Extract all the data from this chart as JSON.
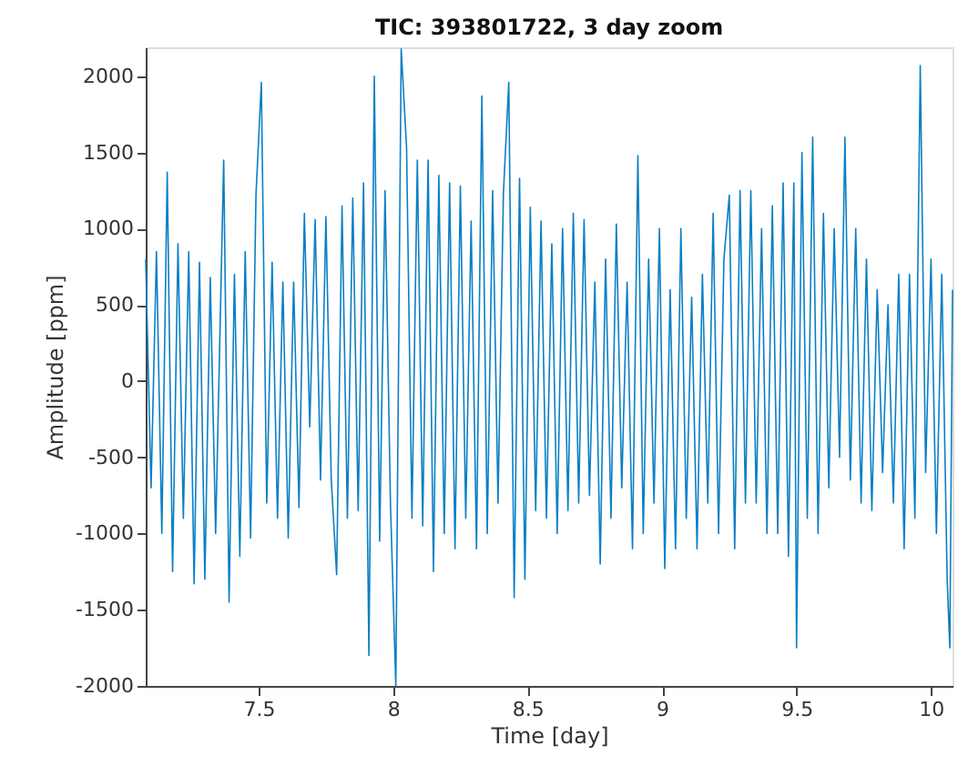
{
  "chart_data": {
    "type": "line",
    "title": "TIC: 393801722, 3 day zoom",
    "xlabel": "Time  [day]",
    "ylabel": "Amplitude  [ppm]",
    "xlim": [
      7.08,
      10.08
    ],
    "xticks": [
      7.5,
      8,
      8.5,
      9,
      9.5,
      10
    ],
    "ylim": [
      -2000,
      2190
    ],
    "yticks": [
      -2000,
      -1500,
      -1000,
      -500,
      0,
      500,
      1000,
      1500,
      2000
    ],
    "grid": false,
    "marker": "none",
    "line_style": "solid",
    "x": [
      7.08,
      7.1,
      7.12,
      7.14,
      7.16,
      7.18,
      7.2,
      7.22,
      7.24,
      7.26,
      7.28,
      7.3,
      7.32,
      7.34,
      7.37,
      7.39,
      7.41,
      7.43,
      7.45,
      7.47,
      7.49,
      7.51,
      7.53,
      7.55,
      7.57,
      7.59,
      7.61,
      7.63,
      7.65,
      7.67,
      7.69,
      7.71,
      7.73,
      7.75,
      7.77,
      7.79,
      7.81,
      7.83,
      7.85,
      7.87,
      7.89,
      7.91,
      7.93,
      7.95,
      7.97,
      7.99,
      8.01,
      8.03,
      8.05,
      8.07,
      8.09,
      8.11,
      8.13,
      8.15,
      8.17,
      8.19,
      8.21,
      8.23,
      8.25,
      8.27,
      8.29,
      8.31,
      8.33,
      8.35,
      8.37,
      8.39,
      8.41,
      8.43,
      8.45,
      8.47,
      8.49,
      8.51,
      8.53,
      8.55,
      8.57,
      8.59,
      8.61,
      8.63,
      8.65,
      8.67,
      8.69,
      8.71,
      8.73,
      8.75,
      8.77,
      8.79,
      8.81,
      8.83,
      8.85,
      8.87,
      8.89,
      8.91,
      8.93,
      8.95,
      8.97,
      8.99,
      9.01,
      9.03,
      9.05,
      9.07,
      9.09,
      9.11,
      9.13,
      9.15,
      9.17,
      9.19,
      9.21,
      9.23,
      9.25,
      9.27,
      9.29,
      9.31,
      9.33,
      9.35,
      9.37,
      9.39,
      9.41,
      9.43,
      9.45,
      9.47,
      9.49,
      9.5,
      9.52,
      9.54,
      9.56,
      9.58,
      9.6,
      9.62,
      9.64,
      9.66,
      9.68,
      9.7,
      9.72,
      9.74,
      9.76,
      9.78,
      9.8,
      9.82,
      9.84,
      9.86,
      9.88,
      9.9,
      9.92,
      9.94,
      9.96,
      9.98,
      10.0,
      10.02,
      10.04,
      10.06,
      10.07,
      10.08
    ],
    "series": [
      {
        "color": "#0a7fc4",
        "values": [
          800,
          -700,
          850,
          -1000,
          1370,
          -1250,
          900,
          -900,
          850,
          -1330,
          780,
          -1300,
          680,
          -1000,
          1450,
          -1450,
          700,
          -1150,
          850,
          -1030,
          1220,
          1960,
          -800,
          780,
          -900,
          650,
          -1030,
          650,
          -830,
          1100,
          -300,
          1060,
          -650,
          1080,
          -650,
          -1270,
          1150,
          -900,
          1200,
          -850,
          1300,
          -1800,
          2000,
          -1050,
          1250,
          -800,
          -2000,
          2180,
          1530,
          -900,
          1450,
          -950,
          1450,
          -1250,
          1350,
          -1000,
          1300,
          -1100,
          1280,
          -900,
          1050,
          -1100,
          1870,
          -1000,
          1250,
          -800,
          1230,
          1960,
          -1420,
          1330,
          -1300,
          1140,
          -850,
          1050,
          -900,
          900,
          -1000,
          1000,
          -850,
          1100,
          -800,
          1060,
          -750,
          650,
          -1200,
          800,
          -900,
          1030,
          -700,
          650,
          -1100,
          1480,
          -1000,
          800,
          -800,
          1000,
          -1230,
          600,
          -1100,
          1000,
          -900,
          550,
          -1100,
          700,
          -800,
          1100,
          -1000,
          800,
          1220,
          -1100,
          1250,
          -800,
          1250,
          -800,
          1000,
          -1000,
          1150,
          -1000,
          1300,
          -1150,
          1300,
          -1750,
          1500,
          -900,
          1600,
          -1000,
          1100,
          -700,
          1000,
          -500,
          1600,
          -650,
          1000,
          -800,
          800,
          -850,
          600,
          -600,
          500,
          -800,
          700,
          -1100,
          700,
          -900,
          2070,
          -600,
          800,
          -1000,
          700,
          -1300,
          -1750,
          600
        ]
      }
    ]
  }
}
